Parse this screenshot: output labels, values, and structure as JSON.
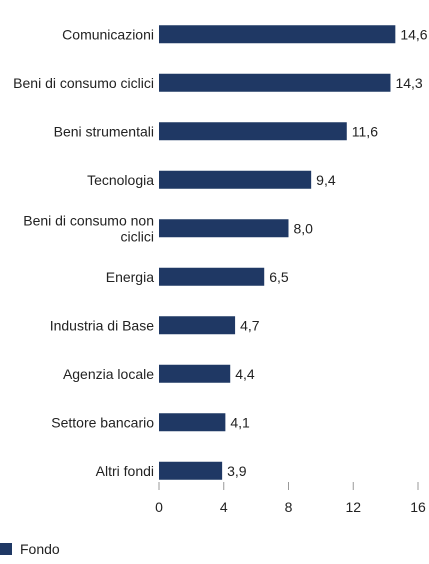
{
  "chart_data": {
    "type": "bar",
    "orientation": "horizontal",
    "categories": [
      "Comunicazioni",
      "Beni di consumo ciclici",
      "Beni strumentali",
      "Tecnologia",
      "Beni di consumo non ciclici",
      "Energia",
      "Industria di Base",
      "Agenzia locale",
      "Settore bancario",
      "Altri fondi"
    ],
    "series": [
      {
        "name": "Fondo",
        "values": [
          14.6,
          14.3,
          11.6,
          9.4,
          8.0,
          6.5,
          4.7,
          4.4,
          4.1,
          3.9
        ],
        "value_labels": [
          "14,6",
          "14,3",
          "11,6",
          "9,4",
          "8,0",
          "6,5",
          "4,7",
          "4,4",
          "4,1",
          "3,9"
        ],
        "color": "#1f3864"
      }
    ],
    "xlim": [
      0,
      16
    ],
    "xticks": [
      0,
      4,
      8,
      12,
      16
    ],
    "grid": false,
    "legend_position": "bottom-left"
  },
  "legend": {
    "label": "Fondo",
    "color": "#1f3864"
  }
}
